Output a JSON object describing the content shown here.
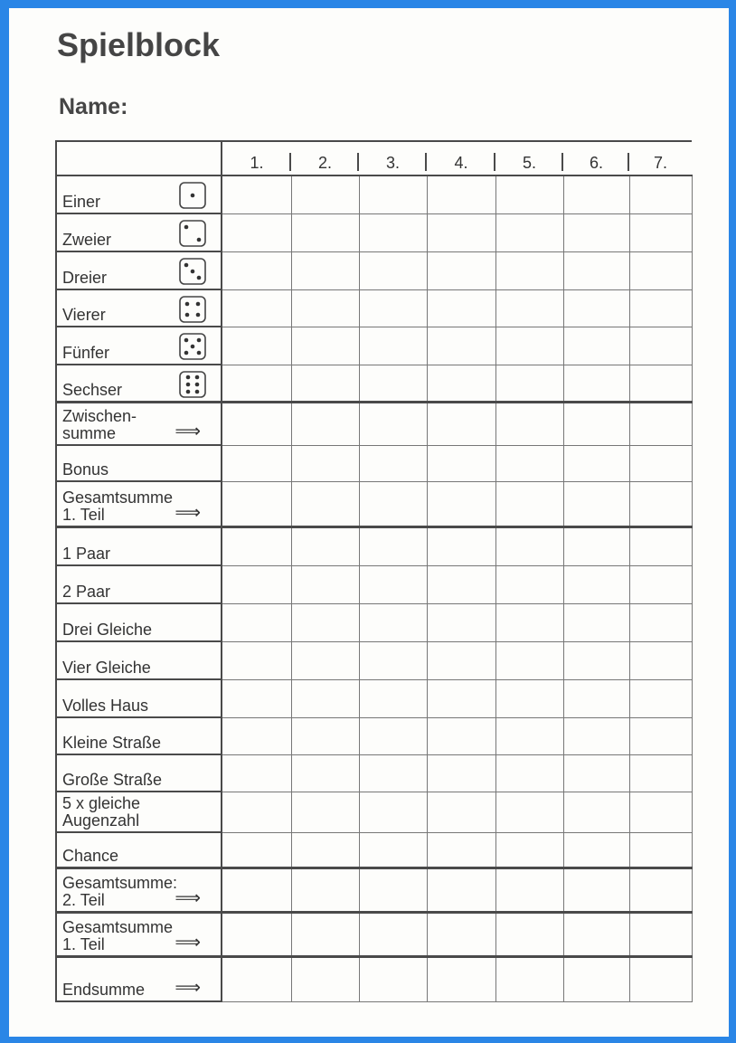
{
  "title": "Spielblock",
  "name_label": "Name:",
  "columns": [
    "1.",
    "2.",
    "3.",
    "4.",
    "5.",
    "6.",
    "7."
  ],
  "rows": [
    {
      "label": "Einer",
      "icon": "die-1-icon",
      "pips": 1
    },
    {
      "label": "Zweier",
      "icon": "die-2-icon",
      "pips": 2
    },
    {
      "label": "Dreier",
      "icon": "die-3-icon",
      "pips": 3
    },
    {
      "label": "Vierer",
      "icon": "die-4-icon",
      "pips": 4
    },
    {
      "label": "Fünfer",
      "icon": "die-5-icon",
      "pips": 5
    },
    {
      "label": "Sechser",
      "icon": "die-6-icon",
      "pips": 6
    },
    {
      "label": "Zwischen-\nsumme",
      "arrow": "⟹"
    },
    {
      "label": "Bonus"
    },
    {
      "label": "Gesamtsumme\n1. Teil",
      "arrow": "⟹"
    },
    {
      "label": "1 Paar"
    },
    {
      "label": "2 Paar"
    },
    {
      "label": "Drei Gleiche"
    },
    {
      "label": "Vier Gleiche"
    },
    {
      "label": "Volles Haus"
    },
    {
      "label": "Kleine Straße"
    },
    {
      "label": "Große Straße"
    },
    {
      "label": "5 x gleiche\nAugenzahl"
    },
    {
      "label": "Chance"
    },
    {
      "label": "Gesamtsumme:\n2. Teil",
      "arrow": "⟹"
    },
    {
      "label": "Gesamtsumme\n1. Teil",
      "arrow": "⟹"
    },
    {
      "label": "Endsumme",
      "arrow": "⟹"
    }
  ]
}
